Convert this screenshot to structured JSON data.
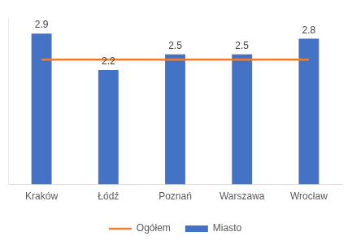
{
  "chart_data": {
    "type": "bar",
    "categories": [
      "Kraków",
      "Łódź",
      "Poznań",
      "Warszawa",
      "Wrocław"
    ],
    "series": [
      {
        "name": "Miasto",
        "type": "bar",
        "color": "#4472c4",
        "values": [
          2.9,
          2.2,
          2.5,
          2.5,
          2.8
        ],
        "data_labels": true
      },
      {
        "name": "Ogółem",
        "type": "line",
        "color": "#ed7d31",
        "marker": "none",
        "line_style": "solid",
        "values": [
          2.4,
          2.4,
          2.4,
          2.4,
          2.4
        ]
      }
    ],
    "ylim": [
      0,
      3.2
    ],
    "grid": false,
    "legend": "bottom",
    "tick_labels": "x"
  }
}
